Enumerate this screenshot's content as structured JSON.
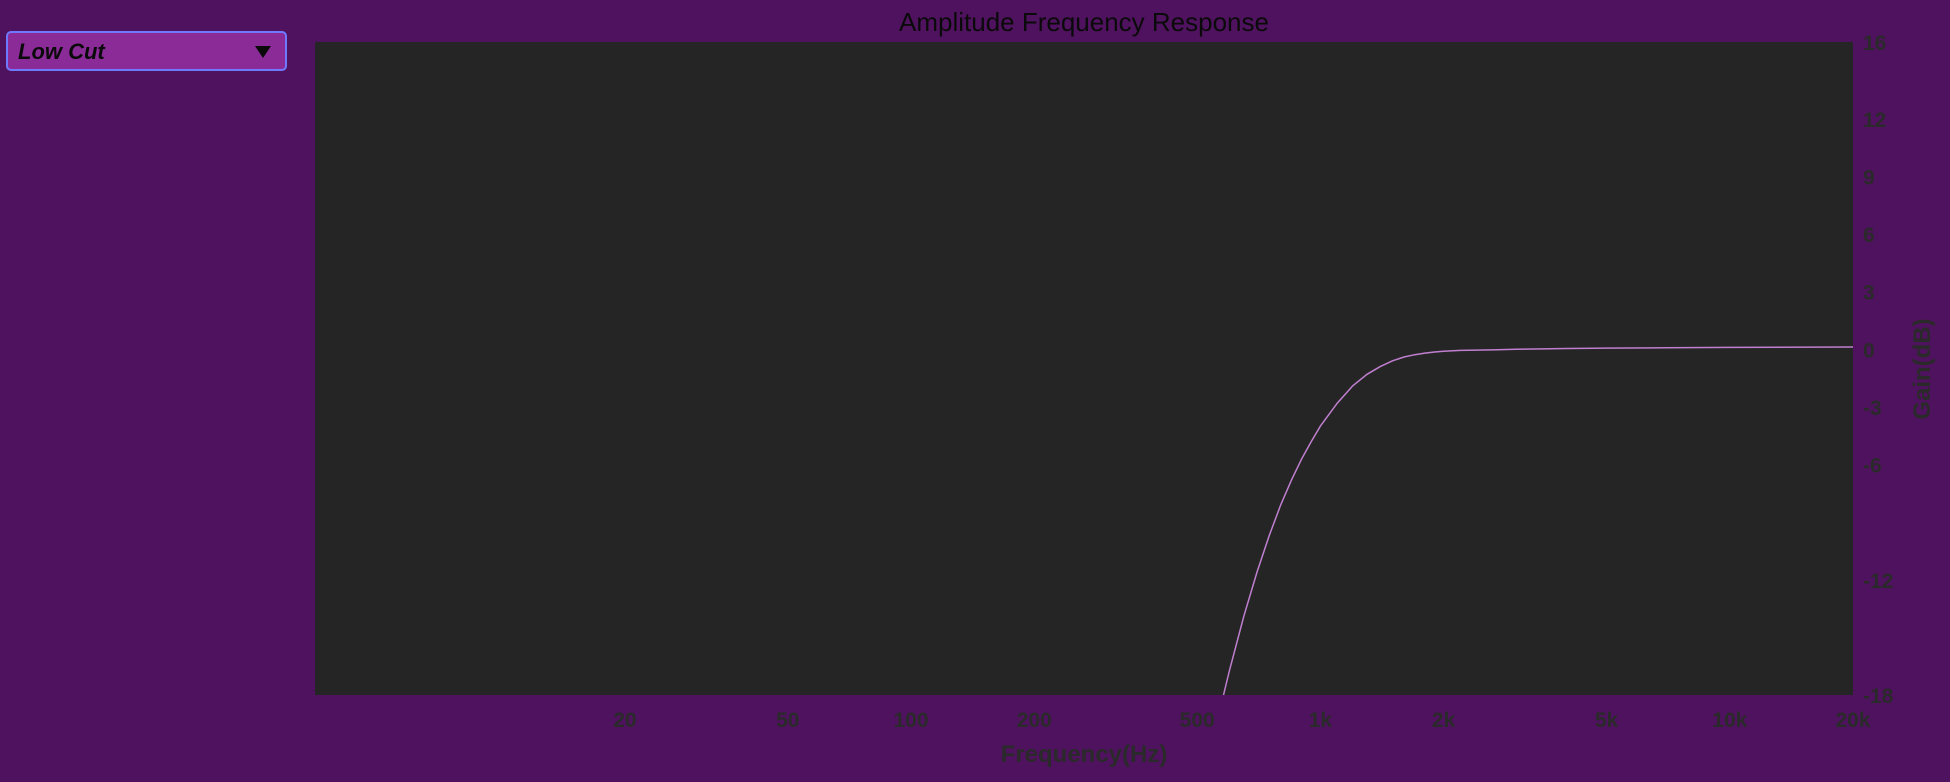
{
  "filter_select": {
    "selected": "Low Cut",
    "icon": "triangle-down-icon"
  },
  "colors": {
    "background": "#4f125e",
    "plot_background": "#252525",
    "curve": "#c07fd0",
    "tick_text": "#2a2a2a",
    "title_text": "#0a0a0a"
  },
  "chart_data": {
    "type": "line",
    "title": "Amplitude Frequency Response",
    "xlabel": "Frequency(Hz)",
    "ylabel": "Gain(dB)",
    "x_scale": "log",
    "xlim": [
      3.5,
      20000
    ],
    "ylim": [
      -18,
      16
    ],
    "grid": false,
    "x_ticks": [
      {
        "value": 20,
        "label": "20"
      },
      {
        "value": 50,
        "label": "50"
      },
      {
        "value": 100,
        "label": "100"
      },
      {
        "value": 200,
        "label": "200"
      },
      {
        "value": 500,
        "label": "500"
      },
      {
        "value": 1000,
        "label": "1k"
      },
      {
        "value": 2000,
        "label": "2k"
      },
      {
        "value": 5000,
        "label": "5k"
      },
      {
        "value": 10000,
        "label": "10k"
      },
      {
        "value": 20000,
        "label": "20k"
      }
    ],
    "y_ticks": [
      {
        "value": 16,
        "label": "16"
      },
      {
        "value": 12,
        "label": "12"
      },
      {
        "value": 9,
        "label": "9"
      },
      {
        "value": 6,
        "label": "6"
      },
      {
        "value": 3,
        "label": "3"
      },
      {
        "value": 0,
        "label": "0"
      },
      {
        "value": -3,
        "label": "-3"
      },
      {
        "value": -6,
        "label": "-6"
      },
      {
        "value": -12,
        "label": "-12"
      },
      {
        "value": -18,
        "label": "-18"
      }
    ],
    "series": [
      {
        "x": [
          580,
          600,
          650,
          700,
          750,
          800,
          850,
          900,
          950,
          1000,
          1100,
          1200,
          1300,
          1400,
          1500,
          1600,
          1700,
          1800,
          1900,
          2000,
          2200,
          2400,
          2700,
          3000,
          3500,
          4000,
          5000,
          7000,
          10000,
          20000
        ],
        "y": [
          -18.0,
          -16.7,
          -13.9,
          -11.6,
          -9.7,
          -8.1,
          -6.8,
          -5.7,
          -4.8,
          -4.0,
          -2.8,
          -1.9,
          -1.3,
          -0.9,
          -0.6,
          -0.4,
          -0.28,
          -0.2,
          -0.14,
          -0.1,
          -0.06,
          -0.04,
          -0.02,
          0.0,
          0.02,
          0.04,
          0.06,
          0.08,
          0.1,
          0.12
        ]
      }
    ]
  }
}
